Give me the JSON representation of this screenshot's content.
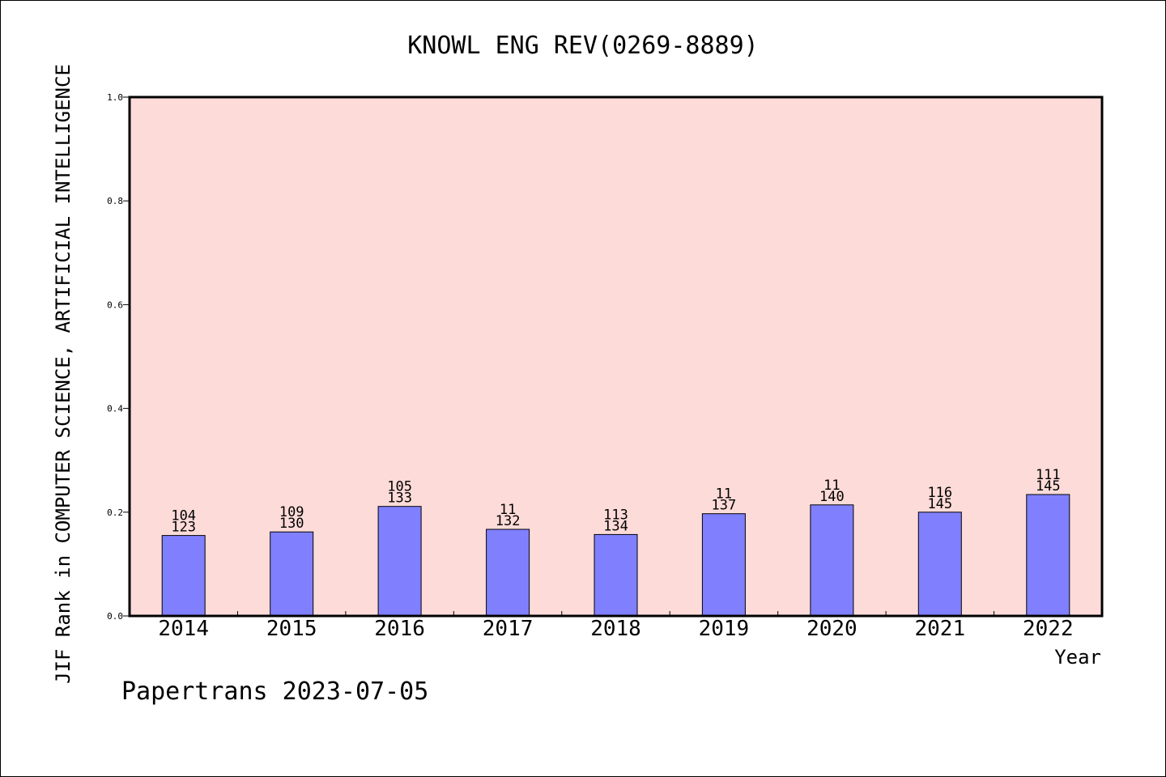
{
  "chart_data": {
    "type": "bar",
    "title": "KNOWL ENG REV(0269-8889)",
    "xlabel": "Year",
    "ylabel": "JIF Rank in COMPUTER SCIENCE, ARTIFICIAL INTELLIGENCE",
    "ylim": [
      0,
      1.0
    ],
    "yticks": [
      "0.0",
      "0.2",
      "0.4",
      "0.6",
      "0.8",
      "1.0"
    ],
    "categories": [
      "2014",
      "2015",
      "2016",
      "2017",
      "2018",
      "2019",
      "2020",
      "2021",
      "2022"
    ],
    "values": [
      0.155,
      0.162,
      0.211,
      0.167,
      0.157,
      0.197,
      0.214,
      0.2,
      0.234
    ],
    "bar_labels_top": [
      "104",
      "109",
      "105",
      "11",
      "113",
      "11",
      "11",
      "116",
      "111"
    ],
    "bar_labels_bottom": [
      "123",
      "130",
      "133",
      "132",
      "134",
      "137",
      "140",
      "145",
      "145"
    ],
    "footer": "Papertrans 2023-07-05",
    "colors": {
      "plot_background": "#fddbd8",
      "bar_fill": "#8080ff",
      "bar_stroke": "#000000"
    }
  }
}
